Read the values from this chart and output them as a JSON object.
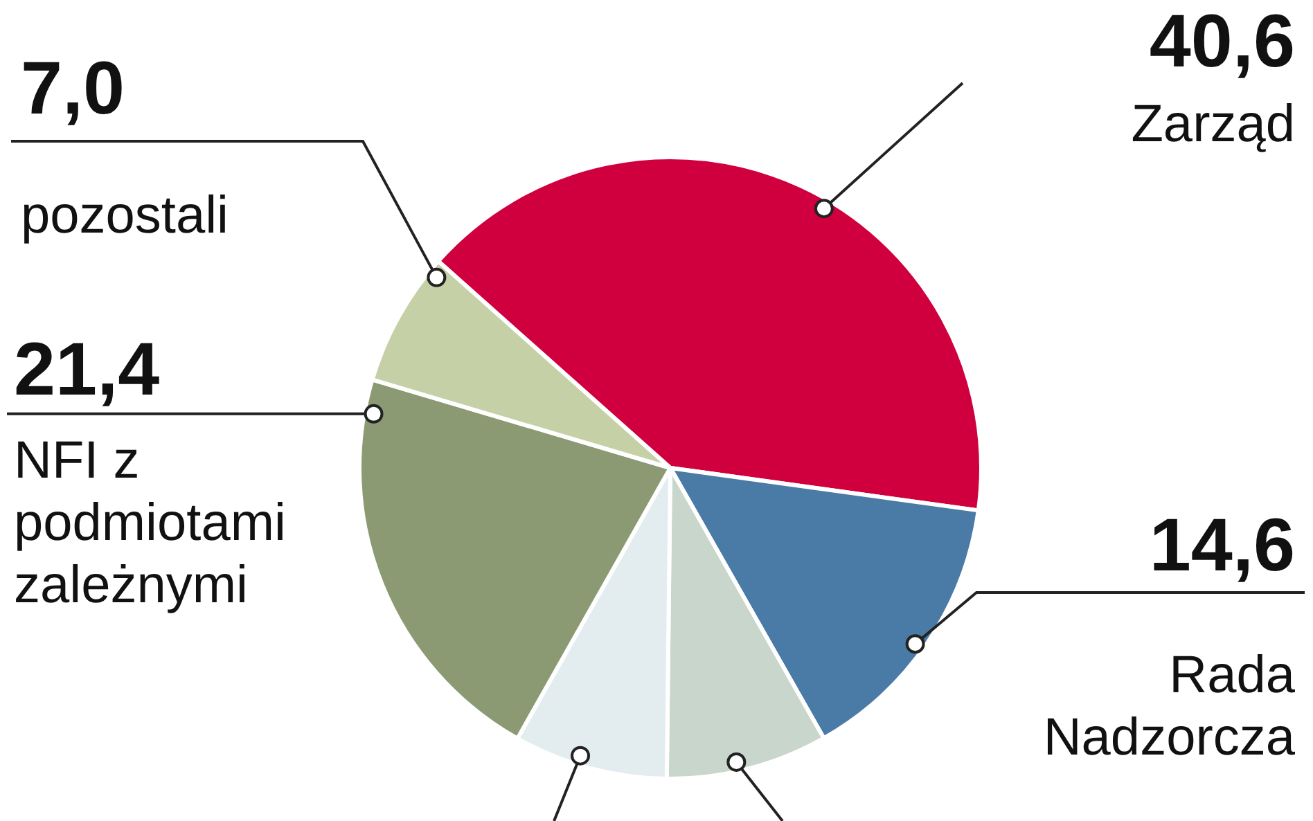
{
  "chart_data": {
    "type": "pie",
    "categories": [
      "Zarząd",
      "Rada Nadzorcza",
      null,
      null,
      "NFI z podmiotami zależnymi",
      "pozostali"
    ],
    "values": [
      40.6,
      14.6,
      8.4,
      8.0,
      21.4,
      7.0
    ],
    "colors": [
      "#d0003f",
      "#4a7aa6",
      "#c9d6cc",
      "#e3ecef",
      "#8c9a73",
      "#c5d0a7"
    ],
    "value_labels": [
      "40,6",
      "14,6",
      null,
      null,
      "21,4",
      "7,0"
    ]
  }
}
